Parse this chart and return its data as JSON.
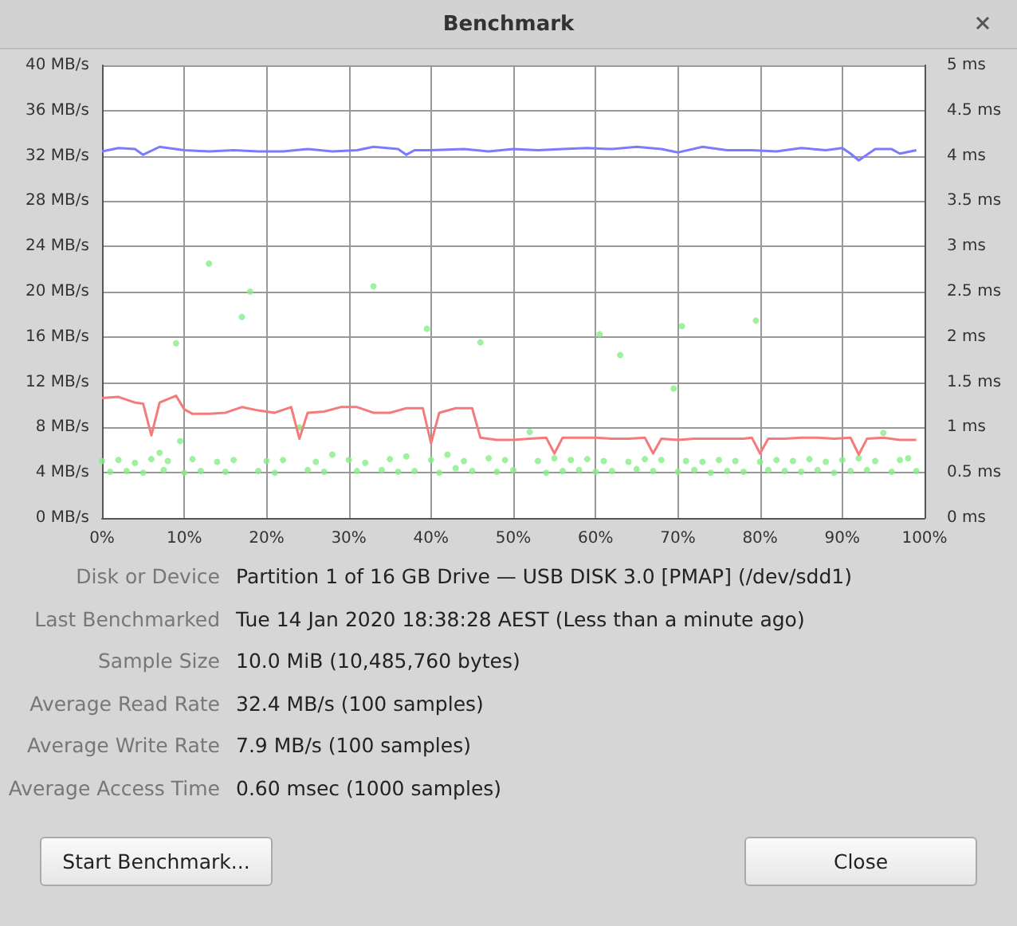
{
  "chart_data": [
    {
      "type": "line",
      "title": "Benchmark",
      "xlim": [
        0,
        100
      ],
      "xticks": [
        {
          "value": 0,
          "label": "0%"
        },
        {
          "value": 10,
          "label": "10%"
        },
        {
          "value": 20,
          "label": "20%"
        },
        {
          "value": 30,
          "label": "30%"
        },
        {
          "value": 40,
          "label": "40%"
        },
        {
          "value": 50,
          "label": "50%"
        },
        {
          "value": 60,
          "label": "60%"
        },
        {
          "value": 70,
          "label": "70%"
        },
        {
          "value": 80,
          "label": "80%"
        },
        {
          "value": 90,
          "label": "90%"
        },
        {
          "value": 100,
          "label": "100%"
        }
      ],
      "ylim": [
        0,
        40
      ],
      "yticks": [
        {
          "value": 0,
          "label": "0 MB/s"
        },
        {
          "value": 4,
          "label": "4 MB/s"
        },
        {
          "value": 8,
          "label": "8 MB/s"
        },
        {
          "value": 12,
          "label": "12 MB/s"
        },
        {
          "value": 16,
          "label": "16 MB/s"
        },
        {
          "value": 20,
          "label": "20 MB/s"
        },
        {
          "value": 24,
          "label": "24 MB/s"
        },
        {
          "value": 28,
          "label": "28 MB/s"
        },
        {
          "value": 32,
          "label": "32 MB/s"
        },
        {
          "value": 36,
          "label": "36 MB/s"
        },
        {
          "value": 40,
          "label": "40 MB/s"
        }
      ],
      "y2lim": [
        0,
        5
      ],
      "y2ticks": [
        {
          "value": 0,
          "label": "0 ms"
        },
        {
          "value": 0.5,
          "label": "0.5 ms"
        },
        {
          "value": 1,
          "label": "1 ms"
        },
        {
          "value": 1.5,
          "label": "1.5 ms"
        },
        {
          "value": 2,
          "label": "2 ms"
        },
        {
          "value": 2.5,
          "label": "2.5 ms"
        },
        {
          "value": 3,
          "label": "3 ms"
        },
        {
          "value": 3.5,
          "label": "3.5 ms"
        },
        {
          "value": 4,
          "label": "4 ms"
        },
        {
          "value": 4.5,
          "label": "4.5 ms"
        },
        {
          "value": 5,
          "label": "5 ms"
        }
      ],
      "grid": true,
      "series": [
        {
          "type": "line",
          "color": "#7b7bff",
          "x": [
            0,
            2,
            4,
            5,
            7,
            10,
            13,
            16,
            19,
            22,
            25,
            28,
            31,
            33,
            36,
            37,
            38,
            40,
            44,
            47,
            50,
            53,
            56,
            59,
            62,
            65,
            68,
            70,
            73,
            76,
            79,
            82,
            85,
            88,
            90,
            91,
            92,
            94,
            96,
            97,
            99
          ],
          "values": [
            32.4,
            32.7,
            32.6,
            32.1,
            32.8,
            32.5,
            32.4,
            32.5,
            32.4,
            32.4,
            32.6,
            32.4,
            32.5,
            32.8,
            32.6,
            32.1,
            32.5,
            32.5,
            32.6,
            32.4,
            32.6,
            32.5,
            32.6,
            32.7,
            32.6,
            32.8,
            32.6,
            32.3,
            32.8,
            32.5,
            32.5,
            32.4,
            32.7,
            32.5,
            32.7,
            32.2,
            31.6,
            32.6,
            32.6,
            32.2,
            32.5
          ]
        },
        {
          "type": "line",
          "color": "#f57a7a",
          "x": [
            0,
            2,
            4,
            5,
            6,
            7,
            9,
            10,
            11,
            13,
            15,
            17,
            19,
            21,
            23,
            24,
            25,
            27,
            29,
            31,
            33,
            35,
            37,
            39,
            40,
            41,
            43,
            45,
            46,
            48,
            50,
            52,
            54,
            55,
            56,
            58,
            60,
            62,
            64,
            66,
            67,
            68,
            70,
            72,
            74,
            76,
            78,
            79,
            80,
            81,
            83,
            85,
            87,
            89,
            91,
            92,
            93,
            95,
            97,
            99
          ],
          "values": [
            10.6,
            10.7,
            10.2,
            10.1,
            7.3,
            10.2,
            10.8,
            9.6,
            9.2,
            9.2,
            9.3,
            9.8,
            9.5,
            9.3,
            9.8,
            7.0,
            9.3,
            9.4,
            9.8,
            9.8,
            9.3,
            9.3,
            9.7,
            9.7,
            6.6,
            9.3,
            9.7,
            9.7,
            7.1,
            6.9,
            6.9,
            7.0,
            7.1,
            5.7,
            7.1,
            7.1,
            7.1,
            7.0,
            7.0,
            7.1,
            5.7,
            7.0,
            6.9,
            7.0,
            7.0,
            7.0,
            7.0,
            7.1,
            5.7,
            7.0,
            7.0,
            7.1,
            7.1,
            7.0,
            7.1,
            5.6,
            7.0,
            7.1,
            6.9,
            6.9
          ]
        },
        {
          "type": "scatter",
          "axis": "y2",
          "color": "#86ee86",
          "x": [
            0,
            1,
            2,
            3,
            4,
            5,
            6,
            7,
            7.5,
            8,
            9,
            9.5,
            10,
            11,
            12,
            13,
            14,
            15,
            16,
            17,
            18,
            19,
            20,
            21,
            22,
            24,
            25,
            26,
            27,
            28,
            30,
            31,
            32,
            33,
            34,
            35,
            36,
            37,
            38,
            39.5,
            40,
            41,
            42,
            43,
            44,
            45,
            46,
            47,
            48,
            49,
            50,
            52,
            53,
            54,
            55,
            56,
            57,
            58,
            59,
            60,
            60.5,
            61,
            62,
            63,
            64,
            65,
            66,
            67,
            68,
            69.5,
            70,
            70.5,
            71,
            72,
            73,
            74,
            75,
            76,
            77,
            78,
            79.5,
            80,
            81,
            82,
            83,
            84,
            85,
            86,
            87,
            88,
            89,
            90,
            91,
            92,
            93,
            94,
            95,
            96,
            97,
            98,
            99
          ],
          "values": [
            0.63,
            0.51,
            0.64,
            0.52,
            0.61,
            0.5,
            0.65,
            0.72,
            0.53,
            0.63,
            1.93,
            0.85,
            0.5,
            0.65,
            0.52,
            2.81,
            0.62,
            0.51,
            0.64,
            2.22,
            2.5,
            0.52,
            0.63,
            0.5,
            0.64,
            1.0,
            0.53,
            0.62,
            0.51,
            0.7,
            0.64,
            0.52,
            0.61,
            2.56,
            0.53,
            0.65,
            0.51,
            0.68,
            0.52,
            2.09,
            0.64,
            0.5,
            0.7,
            0.55,
            0.63,
            0.52,
            1.94,
            0.66,
            0.51,
            0.64,
            0.53,
            0.95,
            0.63,
            0.5,
            0.66,
            0.52,
            0.64,
            0.53,
            0.65,
            0.51,
            2.03,
            0.63,
            0.52,
            1.8,
            0.62,
            0.54,
            0.65,
            0.52,
            0.64,
            1.43,
            0.51,
            2.12,
            0.63,
            0.53,
            0.62,
            0.5,
            0.64,
            0.52,
            0.63,
            0.51,
            2.18,
            0.62,
            0.53,
            0.64,
            0.52,
            0.63,
            0.51,
            0.65,
            0.53,
            0.62,
            0.5,
            0.64,
            0.52,
            0.66,
            0.53,
            0.63,
            0.94,
            0.51,
            0.64,
            0.66,
            0.52
          ]
        }
      ]
    },
    {
      "type": "other",
      "annotations": [
        "Disk or Device",
        "Partition 1 of 16 GB Drive — USB DISK 3.0 [PMAP] (/dev/sdd1)",
        "Last Benchmarked",
        "Tue 14 Jan 2020 18:38:28 AEST (Less than a minute ago)",
        "Sample Size",
        "10.0 MiB (10,485,760 bytes)",
        "Average Read Rate",
        "32.4 MB/s (100 samples)",
        "Average Write Rate",
        "7.9 MB/s (100 samples)",
        "Average Access Time",
        "0.60 msec (1000 samples)"
      ]
    },
    {
      "type": "other",
      "annotations": [
        "Start Benchmark...",
        "Close"
      ]
    }
  ]
}
